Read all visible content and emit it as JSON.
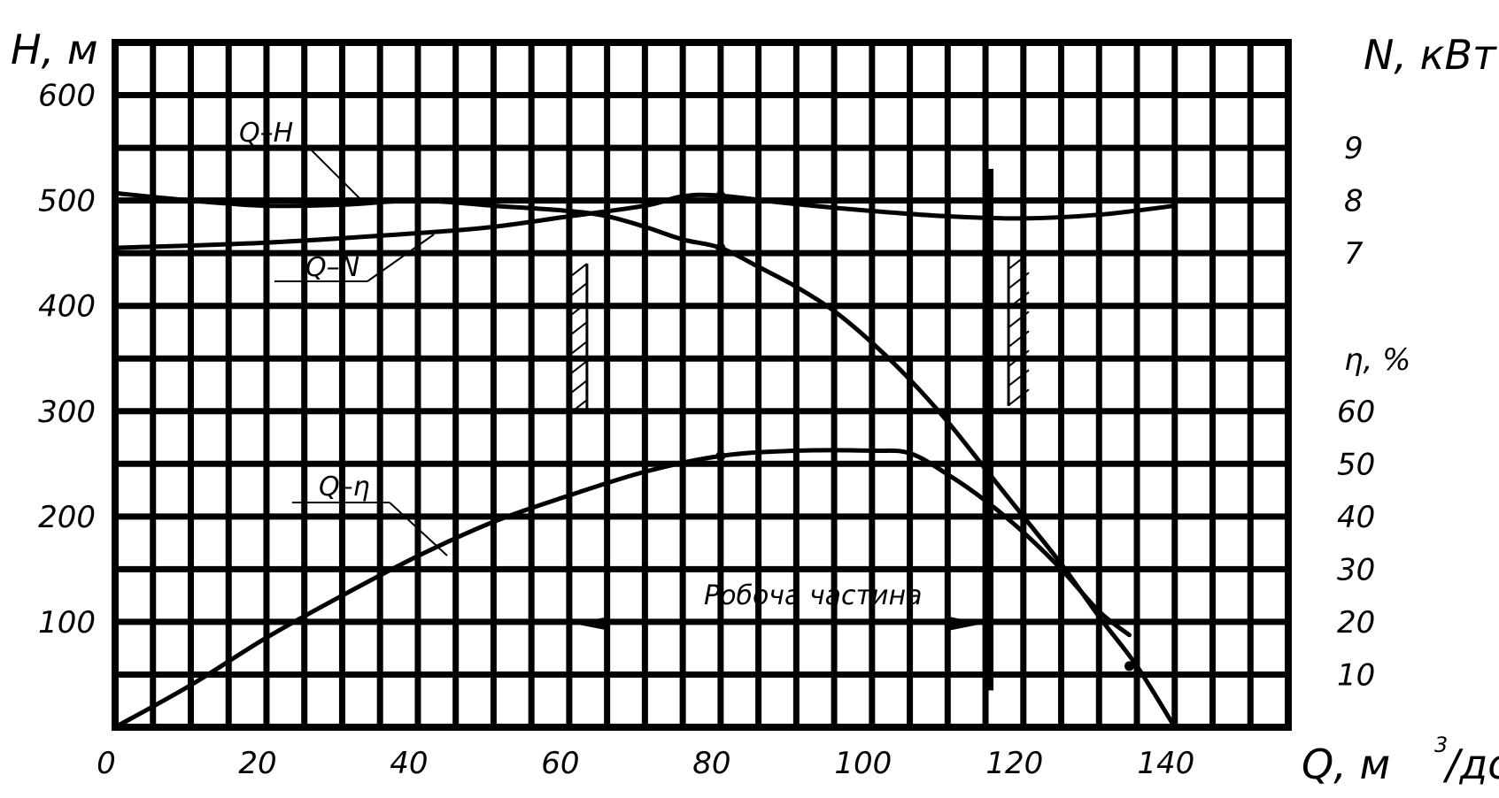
{
  "chart_data": {
    "type": "line",
    "title": "",
    "x_axis": {
      "label": "Q, м",
      "superscript": "3",
      "label_suffix": "/добу",
      "min": 0,
      "max": 155,
      "tick_step": 5,
      "tick_labels": [
        "0",
        "20",
        "40",
        "60",
        "80",
        "100",
        "120",
        "140"
      ],
      "tick_values": [
        0,
        20,
        40,
        60,
        80,
        100,
        120,
        140
      ]
    },
    "y_left": {
      "label": "H, м",
      "min": 0,
      "max": 650,
      "tick_step": 50,
      "tick_labels": [
        "100",
        "200",
        "300",
        "400",
        "500",
        "600"
      ],
      "tick_values": [
        100,
        200,
        300,
        400,
        500,
        600
      ]
    },
    "y_right_power": {
      "label": "N, кВт",
      "tick_labels": [
        "7",
        "8",
        "9"
      ],
      "tick_values": [
        7,
        8,
        9
      ],
      "unit_to_H_scale": 50,
      "unit_to_H_offset": 100
    },
    "y_right_eff": {
      "label": "η, %",
      "tick_labels": [
        "10",
        "20",
        "30",
        "40",
        "50",
        "60"
      ],
      "tick_values": [
        10,
        20,
        30,
        40,
        50,
        60
      ],
      "unit_to_H_scale": 5,
      "unit_to_H_offset": 0
    },
    "series": [
      {
        "name": "Q–H",
        "axis": "H",
        "x": [
          0,
          10,
          20,
          30,
          40,
          50,
          60,
          65,
          70,
          75,
          80,
          85,
          90,
          95,
          100,
          105,
          110,
          115,
          120,
          125,
          130,
          135,
          140
        ],
        "y": [
          507,
          500,
          495,
          496,
          500,
          495,
          490,
          485,
          475,
          463,
          455,
          437,
          418,
          395,
          365,
          330,
          290,
          245,
          200,
          155,
          105,
          58,
          0
        ]
      },
      {
        "name": "Q–N",
        "axis": "N",
        "x": [
          0,
          20,
          40,
          50,
          60,
          70,
          75,
          80,
          90,
          100,
          110,
          120,
          130,
          140
        ],
        "y": [
          7.1,
          7.2,
          7.38,
          7.5,
          7.7,
          7.9,
          8.08,
          8.09,
          7.93,
          7.8,
          7.7,
          7.66,
          7.73,
          7.9
        ]
      },
      {
        "name": "Q–η",
        "axis": "eta",
        "x": [
          0,
          10,
          20,
          30,
          40,
          50,
          60,
          70,
          80,
          90,
          100,
          105,
          110,
          115,
          120,
          125,
          130,
          134
        ],
        "y": [
          0,
          8,
          17,
          25,
          32.5,
          39,
          44,
          48.5,
          51.5,
          52.5,
          52.5,
          52,
          48,
          43,
          37,
          30,
          22,
          17.5
        ]
      }
    ],
    "marked_points": [
      {
        "series": "Q–H",
        "x": 80,
        "y": 455
      },
      {
        "series": "Q–N",
        "x": 80,
        "y": 8.09
      },
      {
        "series": "Q–η",
        "x": 80,
        "y": 51.5
      },
      {
        "series": "Q–H",
        "x": 134,
        "y": 58
      }
    ],
    "annotations": {
      "working_range_label": "Робоча частина",
      "working_range_x": [
        60,
        115
      ],
      "curve_labels": [
        "Q–H",
        "Q–N",
        "Q–η"
      ]
    },
    "grid": true
  }
}
